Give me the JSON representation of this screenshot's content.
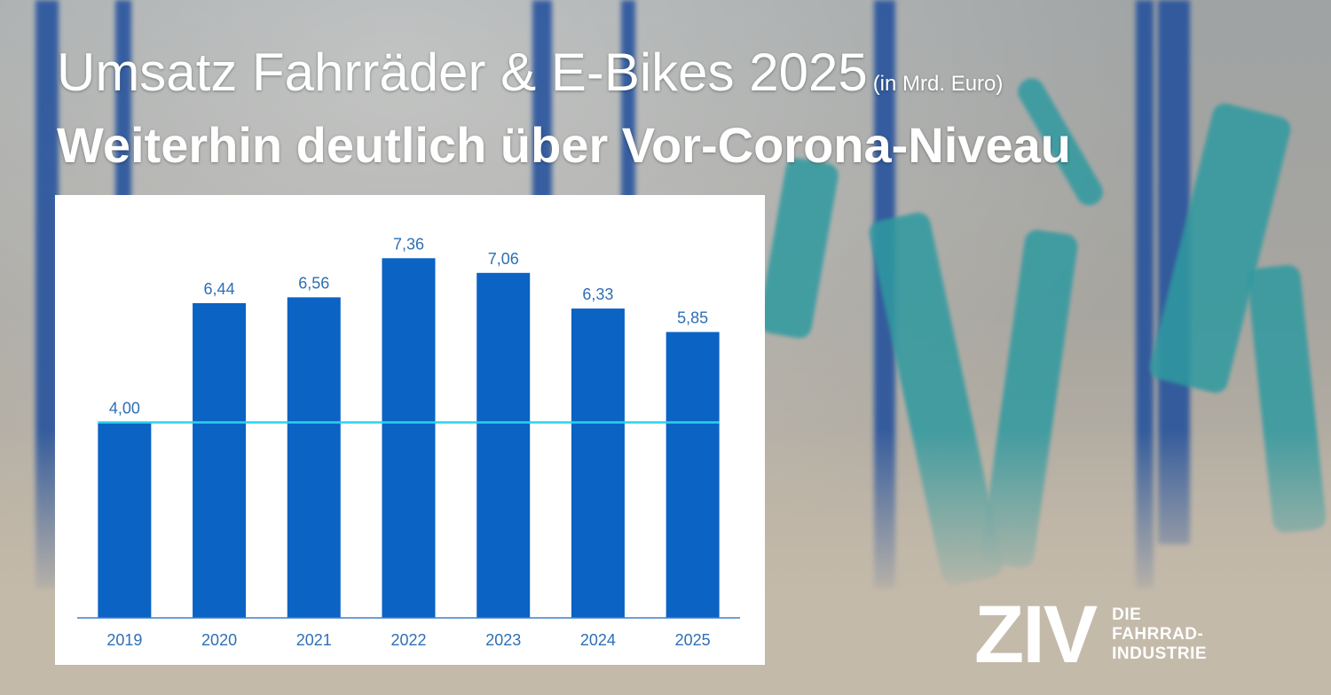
{
  "header": {
    "title": "Umsatz Fahrräder & E-Bikes 2025",
    "unit": "(in Mrd. Euro)",
    "subtitle": "Weiterhin deutlich über Vor-Corona-Niveau"
  },
  "logo": {
    "mark": "ZIV",
    "line1": "DIE",
    "line2": "FAHRRAD-",
    "line3": "INDUSTRIE"
  },
  "colors": {
    "bar": "#0b63c4",
    "reference_line": "#29d3ee",
    "axis": "#3f7fc9",
    "label": "#2e6fb5"
  },
  "chart_data": {
    "type": "bar",
    "categories": [
      "2019",
      "2020",
      "2021",
      "2022",
      "2023",
      "2024",
      "2025"
    ],
    "values": [
      4.0,
      6.44,
      6.56,
      7.36,
      7.06,
      6.33,
      5.85
    ],
    "value_labels": [
      "4,00",
      "6,44",
      "6,56",
      "7,36",
      "7,06",
      "6,33",
      "5,85"
    ],
    "title": "Umsatz Fahrräder & E-Bikes 2025",
    "unit": "in Mrd. Euro",
    "reference_line": 4.0,
    "ylim": [
      0,
      8
    ],
    "grid": false,
    "legend": "none"
  }
}
